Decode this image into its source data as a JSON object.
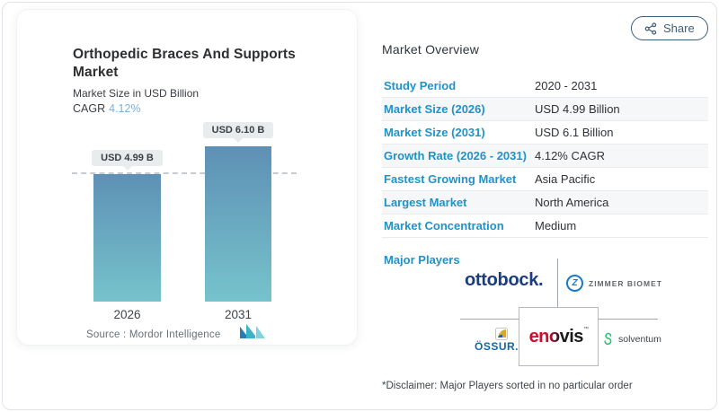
{
  "header": {
    "share_label": "Share"
  },
  "chart": {
    "title_line1": "Orthopedic Braces And Supports",
    "title_line2": "Market",
    "subtitle": "Market Size in USD Billion",
    "cagr_label": "CAGR",
    "cagr_value": "4.12%",
    "source": "Source :  Mordor Intelligence"
  },
  "chart_data": {
    "type": "bar",
    "title": "Orthopedic Braces And Supports Market",
    "subtitle": "Market Size in USD Billion",
    "cagr_pct": 4.12,
    "categories": [
      "2026",
      "2031"
    ],
    "values": [
      4.99,
      6.1
    ],
    "value_labels": [
      "USD 4.99 B",
      "USD 6.10 B"
    ],
    "unit": "USD Billion",
    "ylim": [
      0,
      6.5
    ],
    "grid": false,
    "legend": "none",
    "dashed_reference_value": 4.99,
    "bar_gradient": [
      "#5e90b5",
      "#76c3cc"
    ]
  },
  "overview": {
    "heading": "Market Overview",
    "rows": [
      {
        "label": "Study Period",
        "value": "2020 - 2031"
      },
      {
        "label": "Market Size (2026)",
        "value": "USD 4.99 Billion"
      },
      {
        "label": "Market Size (2031)",
        "value": "USD 6.1 Billion"
      },
      {
        "label": "Growth Rate (2026 - 2031)",
        "value": "4.12% CAGR"
      },
      {
        "label": "Fastest Growing Market",
        "value": "Asia Pacific"
      },
      {
        "label": "Largest Market",
        "value": "North America"
      },
      {
        "label": "Market Concentration",
        "value": "Medium"
      }
    ],
    "major_players_label": "Major Players",
    "disclaimer": "*Disclaimer: Major Players sorted in no particular order"
  },
  "players": {
    "ottobock": "ottobock.",
    "zimmer": "ZIMMER BIOMET",
    "zimmer_icon_letter": "Z",
    "ossur": "ÖSSUR.",
    "enovis_en": "en",
    "enovis_o": "o",
    "enovis_vis": "vis",
    "enovis_tm": "™",
    "solventum": "solventum"
  },
  "colors": {
    "label_blue": "#2093c6",
    "cagr_blue": "#7fb0da",
    "share_blue": "#3e5d79",
    "bar_top": "#5e90b5",
    "bar_bottom": "#76c3cc",
    "ottobock_navy": "#1b3c7f",
    "ossur_blue": "#14679f",
    "zimmer_blue": "#1d79c0",
    "enovis_red": "#c8102e",
    "solventum_green": "#2fbf71",
    "mordor_blue": "#2a7bae",
    "mordor_teal": "#3ab3c6"
  }
}
